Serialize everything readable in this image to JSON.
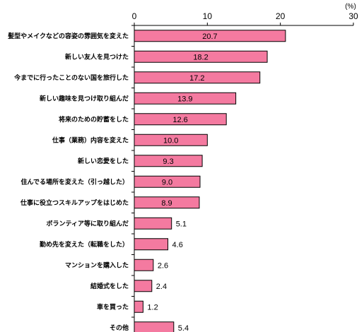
{
  "chart_data": {
    "type": "bar",
    "orientation": "horizontal",
    "unit": "(%)",
    "xlim": [
      0,
      30
    ],
    "xticks": [
      "0",
      "10",
      "20",
      "30"
    ],
    "grid": false,
    "bar_color": "#f47aa0",
    "categories": [
      "髪型やメイクなどの容姿の雰囲気を変えた",
      "新しい友人を見つけた",
      "今までに行ったことのない国を旅行した",
      "新しい趣味を見つけ取り組んだ",
      "将来のための貯蓄をした",
      "仕事（業務）内容を変えた",
      "新しい恋愛をした",
      "住んでる場所を変えた（引っ越した）",
      "仕事に役立つスキルアップをはじめた",
      "ボランティア等に取り組んだ",
      "勤め先を変えた（転職をした）",
      "マンションを購入した",
      "結婚式をした",
      "車を買った",
      "その他"
    ],
    "values": [
      20.7,
      18.2,
      17.2,
      13.9,
      12.6,
      10.0,
      9.3,
      9.0,
      8.9,
      5.1,
      4.6,
      2.6,
      2.4,
      1.2,
      5.4
    ],
    "value_labels": [
      "20.7",
      "18.2",
      "17.2",
      "13.9",
      "12.6",
      "10.0",
      "9.3",
      "9.0",
      "8.9",
      "5.1",
      "4.6",
      "2.6",
      "2.4",
      "1.2",
      "5.4"
    ]
  }
}
